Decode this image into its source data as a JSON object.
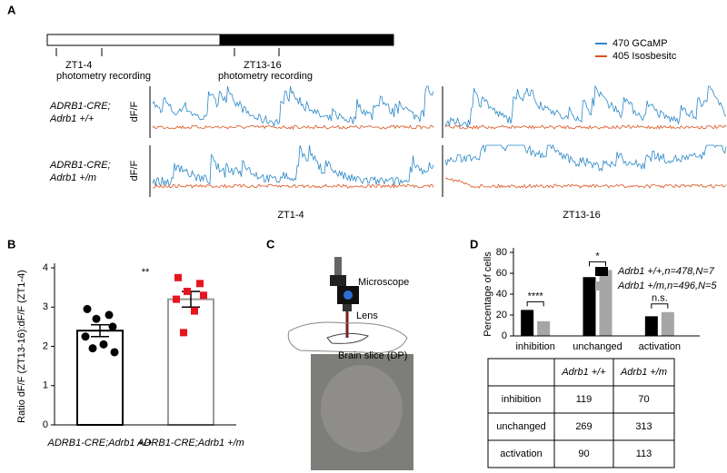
{
  "panel_labels": [
    "A",
    "B",
    "C",
    "D"
  ],
  "panel_a": {
    "timeline": [
      "ZT1-4",
      "photometry recording",
      "ZT13-16",
      "photometry recording"
    ],
    "legend": [
      {
        "name": "470 GCaMP",
        "color": "#2a88c8"
      },
      {
        "name": "405 Isosbesitc",
        "color": "#d9531e"
      }
    ],
    "rows": [
      [
        "ADRB1-CRE;",
        "Adrb1 +/+"
      ],
      [
        "ADRB1-CRE;",
        "Adrb1 +/m"
      ]
    ],
    "trace_axis_label": "dF/F",
    "columns": [
      "ZT1-4",
      "ZT13-16"
    ]
  },
  "panel_c": {
    "labels": [
      "Microscope",
      "Lens",
      "Brain slice (DP)"
    ]
  },
  "chart_data": [
    {
      "type": "bar",
      "ylabel": "Ratio dF/F (ZT13-16):dF/F (ZT1-4)",
      "categories": [
        "ADRB1-CRE;Adrb1 +/+",
        "ADRB1-CRE;Adrb1 +/m"
      ],
      "values": [
        2.4,
        3.2
      ],
      "errors": [
        0.15,
        0.2
      ],
      "colors": [
        "#000000",
        "#999999"
      ],
      "point_colors": [
        "#000000",
        "#e8141e"
      ],
      "points": [
        [
          2.95,
          2.8,
          2.7,
          2.5,
          2.25,
          2.05,
          1.95,
          1.85
        ],
        [
          3.75,
          3.6,
          3.4,
          3.3,
          3.2,
          2.9,
          2.35
        ]
      ],
      "annotation": "**",
      "ylim": [
        0,
        4
      ],
      "yticks": [
        0,
        1,
        2,
        3,
        4
      ]
    },
    {
      "type": "grouped_bar",
      "ylabel": "Percentage of cells",
      "categories": [
        "inhibition",
        "unchanged",
        "activation"
      ],
      "series": [
        {
          "name": "Adrb1 +/+,n=478,N=7",
          "color": "#000000",
          "values": [
            24.9,
            56.3,
            18.8
          ]
        },
        {
          "name": "Adrb1 +/m,n=496,N=5",
          "color": "#a6a6a6",
          "values": [
            14.1,
            63.1,
            22.8
          ]
        }
      ],
      "annotations": [
        "****",
        "*",
        "n.s."
      ],
      "ylim": [
        0,
        80
      ],
      "yticks": [
        0,
        20,
        40,
        60,
        80
      ]
    }
  ],
  "table": {
    "columns": [
      "Adrb1 +/+",
      "Adrb1 +/m"
    ],
    "rows": [
      [
        "inhibition",
        119,
        70
      ],
      [
        "unchanged",
        269,
        313
      ],
      [
        "activation",
        90,
        113
      ]
    ]
  }
}
